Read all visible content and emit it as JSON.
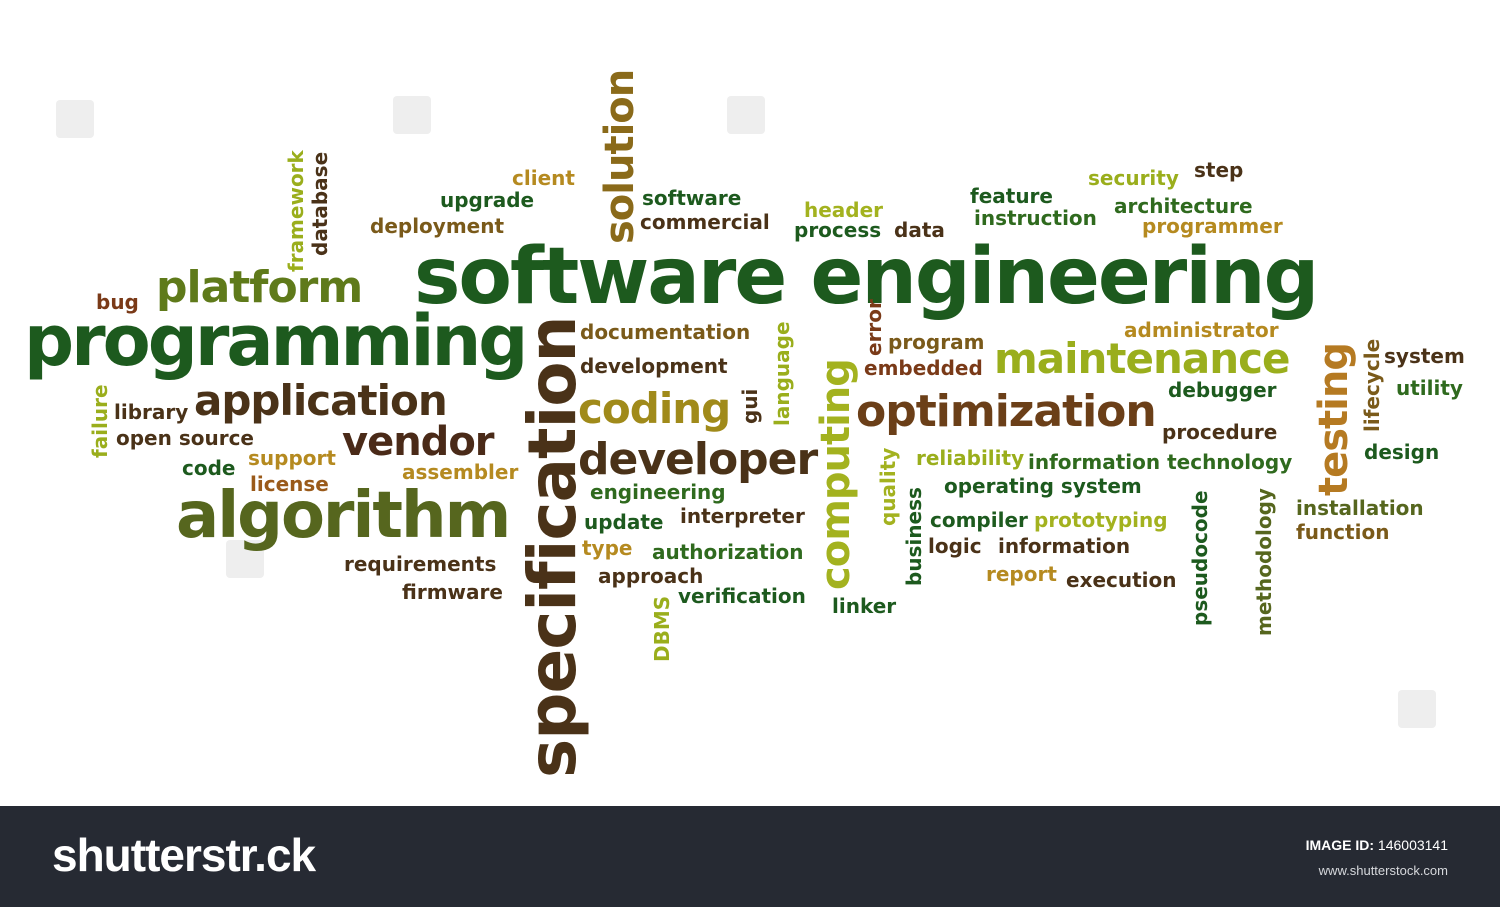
{
  "cloud": {
    "words": [
      {
        "text": "software engineering",
        "color": "#1d5a1e"
      },
      {
        "text": "programming",
        "color": "#1d5a1e"
      },
      {
        "text": "algorithm",
        "color": "#56661e"
      },
      {
        "text": "specification",
        "color": "#4a3218"
      },
      {
        "text": "platform",
        "color": "#5f7a1a"
      },
      {
        "text": "application",
        "color": "#4a3218"
      },
      {
        "text": "vendor",
        "color": "#4a2a18"
      },
      {
        "text": "developer",
        "color": "#4a3218"
      },
      {
        "text": "coding",
        "color": "#a08a1a"
      },
      {
        "text": "optimization",
        "color": "#6b3f18"
      },
      {
        "text": "maintenance",
        "color": "#9aae1c"
      },
      {
        "text": "computing",
        "color": "#a3b21f"
      },
      {
        "text": "testing",
        "color": "#b57a22"
      },
      {
        "text": "solution",
        "color": "#8a6a1a"
      },
      {
        "text": "framework",
        "color": "#9aae1c"
      },
      {
        "text": "database",
        "color": "#4a3218"
      },
      {
        "text": "client",
        "color": "#b58a20"
      },
      {
        "text": "upgrade",
        "color": "#1d5a1e"
      },
      {
        "text": "deployment",
        "color": "#7a5a1a"
      },
      {
        "text": "software",
        "color": "#1d5a1e"
      },
      {
        "text": "commercial",
        "color": "#4a3218"
      },
      {
        "text": "header",
        "color": "#a3b21f"
      },
      {
        "text": "process",
        "color": "#1d5a1e"
      },
      {
        "text": "data",
        "color": "#4a3218"
      },
      {
        "text": "feature",
        "color": "#1d5a1e"
      },
      {
        "text": "instruction",
        "color": "#2f6a1e"
      },
      {
        "text": "security",
        "color": "#9aae1c"
      },
      {
        "text": "step",
        "color": "#4a3218"
      },
      {
        "text": "architecture",
        "color": "#2f6a1e"
      },
      {
        "text": "programmer",
        "color": "#b58a20"
      },
      {
        "text": "bug",
        "color": "#7a3a18"
      },
      {
        "text": "documentation",
        "color": "#7a5a1a"
      },
      {
        "text": "development",
        "color": "#4a3218"
      },
      {
        "text": "language",
        "color": "#9aae1c"
      },
      {
        "text": "gui",
        "color": "#4a3218"
      },
      {
        "text": "error",
        "color": "#7a3a18"
      },
      {
        "text": "program",
        "color": "#7a5a1a"
      },
      {
        "text": "embedded",
        "color": "#7a3a18"
      },
      {
        "text": "administrator",
        "color": "#b58a20"
      },
      {
        "text": "lifecycle",
        "color": "#7a5a1a"
      },
      {
        "text": "system",
        "color": "#4a3218"
      },
      {
        "text": "utility",
        "color": "#2f6a1e"
      },
      {
        "text": "debugger",
        "color": "#1d5a1e"
      },
      {
        "text": "procedure",
        "color": "#4a3218"
      },
      {
        "text": "design",
        "color": "#1d5a1e"
      },
      {
        "text": "failure",
        "color": "#9aae1c"
      },
      {
        "text": "library",
        "color": "#4a3218"
      },
      {
        "text": "open source",
        "color": "#4a3218"
      },
      {
        "text": "code",
        "color": "#1d5a1e"
      },
      {
        "text": "support",
        "color": "#b58a20"
      },
      {
        "text": "license",
        "color": "#9a5a1a"
      },
      {
        "text": "assembler",
        "color": "#b58a20"
      },
      {
        "text": "requirements",
        "color": "#4a3218"
      },
      {
        "text": "firmware",
        "color": "#4a3218"
      },
      {
        "text": "engineering",
        "color": "#2f6a1e"
      },
      {
        "text": "update",
        "color": "#1d5a1e"
      },
      {
        "text": "interpreter",
        "color": "#4a3218"
      },
      {
        "text": "type",
        "color": "#b58a20"
      },
      {
        "text": "authorization",
        "color": "#2f6a1e"
      },
      {
        "text": "approach",
        "color": "#4a3218"
      },
      {
        "text": "verification",
        "color": "#1d5a1e"
      },
      {
        "text": "DBMS",
        "color": "#9aae1c"
      },
      {
        "text": "linker",
        "color": "#1d5a1e"
      },
      {
        "text": "quality",
        "color": "#a3b21f"
      },
      {
        "text": "business",
        "color": "#1d5a1e"
      },
      {
        "text": "reliability",
        "color": "#9aae1c"
      },
      {
        "text": "information technology",
        "color": "#2f6a1e"
      },
      {
        "text": "operating system",
        "color": "#1d5a1e"
      },
      {
        "text": "compiler",
        "color": "#1d5a1e"
      },
      {
        "text": "prototyping",
        "color": "#a3b21f"
      },
      {
        "text": "logic",
        "color": "#4a3218"
      },
      {
        "text": "information",
        "color": "#4a3218"
      },
      {
        "text": "report",
        "color": "#b58a20"
      },
      {
        "text": "execution",
        "color": "#4a3218"
      },
      {
        "text": "pseudocode",
        "color": "#1d5a1e"
      },
      {
        "text": "methodology",
        "color": "#56661e"
      },
      {
        "text": "installation",
        "color": "#56661e"
      },
      {
        "text": "function",
        "color": "#7a5a1a"
      }
    ]
  },
  "watermark": {
    "text": "shutterstock"
  },
  "footer": {
    "logo": "shutterstr.ck",
    "image_id_label": "IMAGE ID:",
    "image_id": "146003141",
    "site": "www.shutterstock.com"
  }
}
